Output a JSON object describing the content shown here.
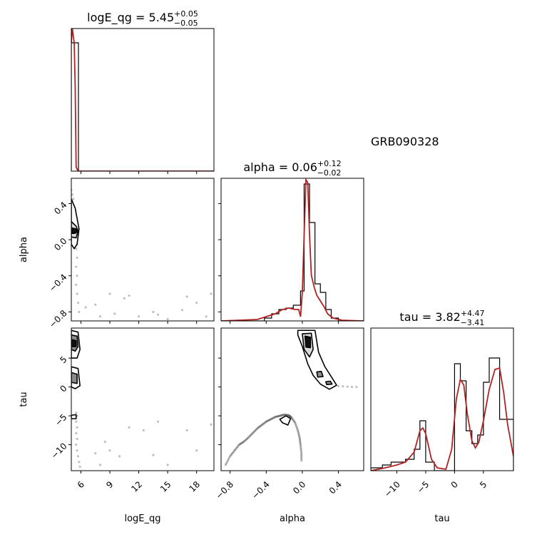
{
  "figure": {
    "label": "GRB090328",
    "line_color": "#b22222",
    "hist_color": "#000000",
    "point_color": "#000000",
    "contour_fills": [
      "#ffffff",
      "#d9d9d9",
      "#8c8c8c",
      "#111111"
    ]
  },
  "chart_data": {
    "type": "corner",
    "parameters": [
      {
        "name": "logE_qg",
        "title_name": "logE_qg",
        "median": "5.45",
        "err_plus": "+0.05",
        "err_minus": "−0.05",
        "range": [
          5.0,
          19.8
        ],
        "ticks": [
          6,
          9,
          12,
          15,
          18
        ],
        "tick_labels": [
          "6",
          "9",
          "12",
          "15",
          "18"
        ]
      },
      {
        "name": "alpha",
        "title_name": "alpha",
        "median": "0.06",
        "err_plus": "+0.12",
        "err_minus": "−0.02",
        "range": [
          -0.9,
          0.68
        ],
        "ticks": [
          -0.8,
          -0.4,
          0.0,
          0.4
        ],
        "tick_labels": [
          "−0.8",
          "−0.4",
          "0.0",
          "0.4"
        ]
      },
      {
        "name": "tau",
        "title_name": "tau",
        "median": "3.82",
        "err_plus": "+4.47",
        "err_minus": "−3.41",
        "range": [
          -14.5,
          10.2
        ],
        "ticks": [
          -10,
          -5,
          0,
          5
        ],
        "tick_labels": [
          "−10",
          "−5",
          "0",
          "5"
        ]
      }
    ],
    "histograms": [
      {
        "param": "logE_qg",
        "edges": [
          5.0,
          5.74,
          19.8
        ],
        "counts": [
          0.9,
          0.0
        ],
        "curve": [
          [
            5.0,
            0.9
          ],
          [
            5.1,
            1.0
          ],
          [
            5.2,
            0.95
          ],
          [
            5.3,
            0.9
          ],
          [
            5.4,
            0.6
          ],
          [
            5.5,
            0.03
          ],
          [
            5.7,
            0.0
          ],
          [
            19.8,
            0.0
          ]
        ]
      },
      {
        "param": "alpha",
        "edges": [
          -0.9,
          -0.42,
          -0.34,
          -0.26,
          -0.18,
          -0.1,
          -0.02,
          0.02,
          0.08,
          0.14,
          0.2,
          0.26,
          0.32,
          0.4,
          0.68
        ],
        "counts": [
          0.0,
          0.02,
          0.05,
          0.08,
          0.09,
          0.11,
          0.21,
          0.96,
          0.69,
          0.26,
          0.2,
          0.08,
          0.02,
          0.0
        ],
        "curve": [
          [
            -0.9,
            0.0
          ],
          [
            -0.5,
            0.01
          ],
          [
            -0.4,
            0.03
          ],
          [
            -0.3,
            0.05
          ],
          [
            -0.22,
            0.08
          ],
          [
            -0.15,
            0.09
          ],
          [
            -0.08,
            0.08
          ],
          [
            -0.04,
            0.08
          ],
          [
            -0.02,
            0.03
          ],
          [
            0.0,
            0.2
          ],
          [
            0.02,
            0.6
          ],
          [
            0.04,
            0.99
          ],
          [
            0.06,
            0.97
          ],
          [
            0.08,
            0.6
          ],
          [
            0.1,
            0.32
          ],
          [
            0.13,
            0.24
          ],
          [
            0.16,
            0.18
          ],
          [
            0.2,
            0.14
          ],
          [
            0.24,
            0.1
          ],
          [
            0.28,
            0.05
          ],
          [
            0.34,
            0.02
          ],
          [
            0.44,
            0.005
          ],
          [
            0.68,
            0.0
          ]
        ]
      },
      {
        "param": "tau",
        "edges": [
          -14.5,
          -12.5,
          -11.0,
          -8.5,
          -7.0,
          -6.0,
          -5.0,
          -3.5,
          0.0,
          1.0,
          2.0,
          3.0,
          4.0,
          5.0,
          6.0,
          7.8,
          9.0,
          10.2
        ],
        "counts": [
          0.02,
          0.04,
          0.06,
          0.08,
          0.15,
          0.35,
          0.06,
          0.0,
          0.75,
          0.63,
          0.28,
          0.19,
          0.25,
          0.62,
          0.79,
          0.36,
          0.36
        ],
        "curve": [
          [
            -14.5,
            0.0
          ],
          [
            -12.0,
            0.02
          ],
          [
            -10.0,
            0.04
          ],
          [
            -8.5,
            0.06
          ],
          [
            -7.0,
            0.13
          ],
          [
            -6.0,
            0.28
          ],
          [
            -5.5,
            0.3
          ],
          [
            -5.0,
            0.26
          ],
          [
            -4.0,
            0.08
          ],
          [
            -3.0,
            0.02
          ],
          [
            -1.5,
            0.01
          ],
          [
            -0.5,
            0.15
          ],
          [
            0.3,
            0.5
          ],
          [
            1.0,
            0.64
          ],
          [
            1.6,
            0.6
          ],
          [
            2.2,
            0.4
          ],
          [
            3.0,
            0.21
          ],
          [
            3.6,
            0.16
          ],
          [
            4.2,
            0.2
          ],
          [
            5.0,
            0.35
          ],
          [
            6.0,
            0.57
          ],
          [
            7.0,
            0.71
          ],
          [
            7.8,
            0.72
          ],
          [
            8.5,
            0.55
          ],
          [
            9.2,
            0.32
          ],
          [
            10.2,
            0.1
          ]
        ]
      }
    ],
    "scatter": {
      "alpha_vs_logE_qg": [
        [
          5.0,
          0.55
        ],
        [
          5.1,
          0.5
        ],
        [
          5.2,
          0.45
        ],
        [
          5.3,
          0.35
        ],
        [
          5.4,
          0.3
        ],
        [
          5.5,
          0.25
        ],
        [
          5.5,
          0.12
        ],
        [
          5.4,
          0.1
        ],
        [
          5.6,
          -0.05
        ],
        [
          5.5,
          -0.1
        ],
        [
          5.6,
          -0.2
        ],
        [
          5.5,
          -0.3
        ],
        [
          5.6,
          -0.4
        ],
        [
          5.5,
          -0.5
        ],
        [
          5.6,
          -0.6
        ],
        [
          5.7,
          -0.7
        ],
        [
          5.8,
          -0.8
        ],
        [
          6.5,
          -0.75
        ],
        [
          7.5,
          -0.72
        ],
        [
          9.0,
          -0.6
        ],
        [
          10.5,
          -0.65
        ],
        [
          11.0,
          -0.62
        ],
        [
          12.0,
          -0.85
        ],
        [
          13.5,
          -0.8
        ],
        [
          14.0,
          -0.83
        ],
        [
          15.0,
          -0.88
        ],
        [
          16.5,
          -0.78
        ],
        [
          17.0,
          -0.63
        ],
        [
          18.0,
          -0.7
        ],
        [
          19.0,
          -0.85
        ],
        [
          19.5,
          -0.6
        ],
        [
          8.0,
          -0.85
        ],
        [
          9.5,
          -0.82
        ]
      ],
      "tau_vs_logE_qg": [
        [
          5.3,
          9.0
        ],
        [
          5.5,
          8.0
        ],
        [
          5.4,
          6.5
        ],
        [
          5.5,
          2.5
        ],
        [
          5.4,
          1.0
        ],
        [
          5.5,
          -4.5
        ],
        [
          5.6,
          -5.0
        ],
        [
          5.5,
          -6.0
        ],
        [
          5.6,
          -7.0
        ],
        [
          5.5,
          -8.0
        ],
        [
          5.6,
          -9.0
        ],
        [
          5.5,
          -10.0
        ],
        [
          5.6,
          -11.0
        ],
        [
          5.7,
          -12.0
        ],
        [
          5.8,
          -13.0
        ],
        [
          5.9,
          -13.8
        ],
        [
          7.5,
          -11.5
        ],
        [
          8.5,
          -9.5
        ],
        [
          9.0,
          -11.0
        ],
        [
          10.0,
          -12.0
        ],
        [
          11.0,
          -7.0
        ],
        [
          12.5,
          -7.5
        ],
        [
          13.5,
          -11.8
        ],
        [
          15.0,
          -13.5
        ],
        [
          17.0,
          -7.5
        ],
        [
          18.0,
          -11.0
        ],
        [
          19.5,
          -6.5
        ],
        [
          8.0,
          -13.5
        ],
        [
          14.0,
          -6.0
        ]
      ],
      "tau_vs_alpha_arc": [
        [
          -0.85,
          -13.5
        ],
        [
          -0.8,
          -12.0
        ],
        [
          -0.75,
          -11.0
        ],
        [
          -0.7,
          -10.0
        ],
        [
          -0.65,
          -9.5
        ],
        [
          -0.6,
          -8.8
        ],
        [
          -0.55,
          -8.0
        ],
        [
          -0.5,
          -7.2
        ],
        [
          -0.45,
          -6.6
        ],
        [
          -0.4,
          -6.0
        ],
        [
          -0.35,
          -5.6
        ],
        [
          -0.3,
          -5.2
        ],
        [
          -0.25,
          -5.0
        ],
        [
          -0.2,
          -4.8
        ],
        [
          -0.15,
          -4.9
        ],
        [
          -0.12,
          -5.3
        ],
        [
          -0.08,
          -6.2
        ],
        [
          -0.05,
          -7.5
        ],
        [
          -0.03,
          -8.8
        ],
        [
          -0.02,
          -10.0
        ],
        [
          -0.01,
          -11.5
        ],
        [
          -0.01,
          -13.0
        ]
      ],
      "tau_vs_alpha_tail": [
        [
          0.3,
          0.3
        ],
        [
          0.35,
          0.2
        ],
        [
          0.4,
          0.15
        ],
        [
          0.45,
          0.1
        ],
        [
          0.5,
          0.05
        ],
        [
          0.55,
          0.0
        ],
        [
          0.6,
          0.0
        ]
      ]
    },
    "contours": {
      "alpha_vs_logE_qg": [
        {
          "level": 0,
          "points": [
            [
              5.0,
              0.45
            ],
            [
              5.4,
              0.35
            ],
            [
              5.8,
              0.12
            ],
            [
              5.6,
              -0.05
            ],
            [
              5.3,
              -0.1
            ],
            [
              5.0,
              -0.05
            ]
          ]
        },
        {
          "level": 1,
          "points": [
            [
              5.0,
              0.2
            ],
            [
              5.5,
              0.15
            ],
            [
              5.7,
              0.1
            ],
            [
              5.5,
              0.02
            ],
            [
              5.0,
              0.03
            ]
          ]
        },
        {
          "level": 3,
          "points": [
            [
              5.0,
              0.13
            ],
            [
              5.5,
              0.12
            ],
            [
              5.6,
              0.09
            ],
            [
              5.4,
              0.07
            ],
            [
              5.0,
              0.07
            ]
          ]
        }
      ],
      "tau_vs_logE_qg": [
        {
          "level": 0,
          "points": [
            [
              5.0,
              9.8
            ],
            [
              5.7,
              9.5
            ],
            [
              5.9,
              6.5
            ],
            [
              5.6,
              5.0
            ],
            [
              5.0,
              5.0
            ]
          ]
        },
        {
          "level": 2,
          "points": [
            [
              5.0,
              9.0
            ],
            [
              5.6,
              8.8
            ],
            [
              5.7,
              7.0
            ],
            [
              5.4,
              6.2
            ],
            [
              5.0,
              6.5
            ]
          ]
        },
        {
          "level": 3,
          "points": [
            [
              5.0,
              8.2
            ],
            [
              5.5,
              8.0
            ],
            [
              5.5,
              7.0
            ],
            [
              5.0,
              7.0
            ]
          ]
        },
        {
          "level": 0,
          "points": [
            [
              5.0,
              3.5
            ],
            [
              5.7,
              3.2
            ],
            [
              5.9,
              0.2
            ],
            [
              5.4,
              -0.3
            ],
            [
              5.0,
              0.0
            ]
          ]
        },
        {
          "level": 2,
          "points": [
            [
              5.0,
              2.5
            ],
            [
              5.6,
              2.2
            ],
            [
              5.6,
              0.6
            ],
            [
              5.0,
              0.8
            ]
          ]
        },
        {
          "level": 0,
          "points": [
            [
              5.0,
              -5.5
            ],
            [
              5.5,
              -5.5
            ],
            [
              5.5,
              -4.8
            ],
            [
              5.0,
              -4.9
            ]
          ]
        }
      ],
      "tau_vs_alpha": [
        {
          "level": 0,
          "points": [
            [
              -0.05,
              9.8
            ],
            [
              0.14,
              9.8
            ],
            [
              0.18,
              6.0
            ],
            [
              0.25,
              3.5
            ],
            [
              0.32,
              1.8
            ],
            [
              0.38,
              0.3
            ],
            [
              0.3,
              -0.4
            ],
            [
              0.2,
              0.5
            ],
            [
              0.12,
              2.0
            ],
            [
              0.06,
              4.0
            ],
            [
              0.0,
              7.0
            ],
            [
              -0.05,
              9.0
            ]
          ]
        },
        {
          "level": 1,
          "points": [
            [
              0.0,
              9.2
            ],
            [
              0.1,
              9.3
            ],
            [
              0.12,
              6.5
            ],
            [
              0.08,
              5.2
            ],
            [
              0.02,
              6.5
            ]
          ]
        },
        {
          "level": 3,
          "points": [
            [
              0.03,
              8.8
            ],
            [
              0.09,
              8.6
            ],
            [
              0.09,
              6.8
            ],
            [
              0.04,
              6.9
            ]
          ]
        },
        {
          "level": 2,
          "points": [
            [
              0.16,
              2.6
            ],
            [
              0.21,
              2.7
            ],
            [
              0.23,
              1.8
            ],
            [
              0.17,
              1.7
            ]
          ]
        },
        {
          "level": 2,
          "points": [
            [
              0.26,
              0.9
            ],
            [
              0.31,
              1.0
            ],
            [
              0.33,
              0.5
            ],
            [
              0.27,
              0.4
            ]
          ]
        },
        {
          "level": 0,
          "points": [
            [
              -0.25,
              -5.6
            ],
            [
              -0.18,
              -5.0
            ],
            [
              -0.13,
              -5.5
            ],
            [
              -0.16,
              -6.6
            ],
            [
              -0.22,
              -6.2
            ]
          ]
        }
      ]
    }
  }
}
